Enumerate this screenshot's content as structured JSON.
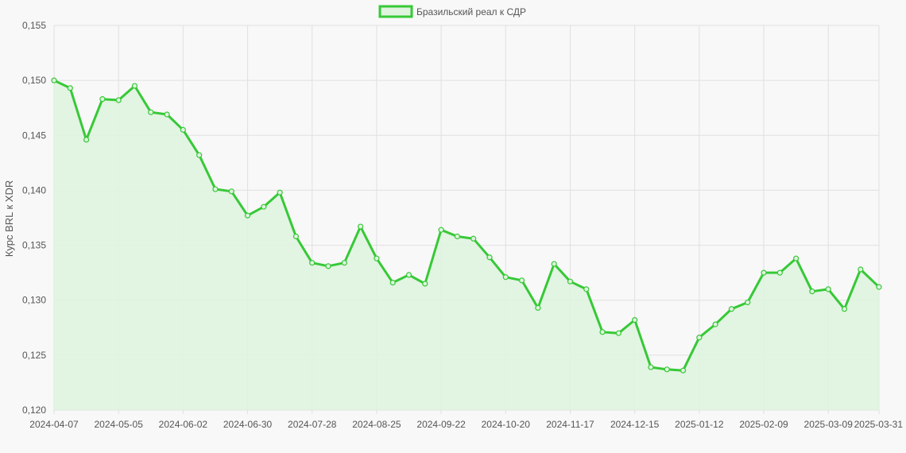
{
  "chart_data": {
    "type": "area",
    "legend": {
      "label": "Бразильский реал к СДР",
      "placement": "top-center"
    },
    "ylabel": "Курс BRL к XDR",
    "xlabel": "",
    "ylim": [
      0.12,
      0.155
    ],
    "y_ticks": [
      "0,120",
      "0,125",
      "0,130",
      "0,135",
      "0,140",
      "0,145",
      "0,150",
      "0,155"
    ],
    "x_ticks": [
      "2024-04-07",
      "2024-05-05",
      "2024-06-02",
      "2024-06-30",
      "2024-07-28",
      "2024-08-25",
      "2024-09-22",
      "2024-10-20",
      "2024-11-17",
      "2024-12-15",
      "2025-01-12",
      "2025-02-09",
      "2025-03-09",
      "2025-03-31"
    ],
    "grid": true,
    "colors": {
      "line": "#36c936",
      "fill": "#dff3df",
      "grid": "#e0e0e0"
    },
    "series": [
      {
        "name": "Бразильский реал к СДР",
        "x": [
          "2024-04-07",
          "2024-04-14",
          "2024-04-21",
          "2024-04-28",
          "2024-05-05",
          "2024-05-12",
          "2024-05-19",
          "2024-05-26",
          "2024-06-02",
          "2024-06-09",
          "2024-06-16",
          "2024-06-23",
          "2024-06-30",
          "2024-07-07",
          "2024-07-14",
          "2024-07-21",
          "2024-07-28",
          "2024-08-04",
          "2024-08-11",
          "2024-08-18",
          "2024-08-25",
          "2024-09-01",
          "2024-09-08",
          "2024-09-15",
          "2024-09-22",
          "2024-09-29",
          "2024-10-06",
          "2024-10-13",
          "2024-10-20",
          "2024-10-27",
          "2024-11-03",
          "2024-11-10",
          "2024-11-17",
          "2024-11-24",
          "2024-12-01",
          "2024-12-08",
          "2024-12-15",
          "2024-12-22",
          "2024-12-29",
          "2025-01-05",
          "2025-01-12",
          "2025-01-19",
          "2025-01-26",
          "2025-02-02",
          "2025-02-09",
          "2025-02-16",
          "2025-02-23",
          "2025-03-02",
          "2025-03-09",
          "2025-03-16",
          "2025-03-23",
          "2025-03-31"
        ],
        "values": [
          0.15,
          0.1493,
          0.1446,
          0.1483,
          0.1482,
          0.1495,
          0.1471,
          0.1469,
          0.1455,
          0.1432,
          0.1401,
          0.1399,
          0.1377,
          0.1385,
          0.1398,
          0.1358,
          0.1334,
          0.1331,
          0.1334,
          0.1367,
          0.1338,
          0.1316,
          0.1323,
          0.1315,
          0.1364,
          0.1358,
          0.1356,
          0.1339,
          0.1321,
          0.1318,
          0.1293,
          0.1333,
          0.1317,
          0.131,
          0.1271,
          0.127,
          0.1282,
          0.1239,
          0.1237,
          0.1236,
          0.1266,
          0.1278,
          0.1292,
          0.1298,
          0.1325,
          0.1325,
          0.1338,
          0.1308,
          0.131,
          0.1292,
          0.1328,
          0.1312
        ]
      }
    ]
  }
}
